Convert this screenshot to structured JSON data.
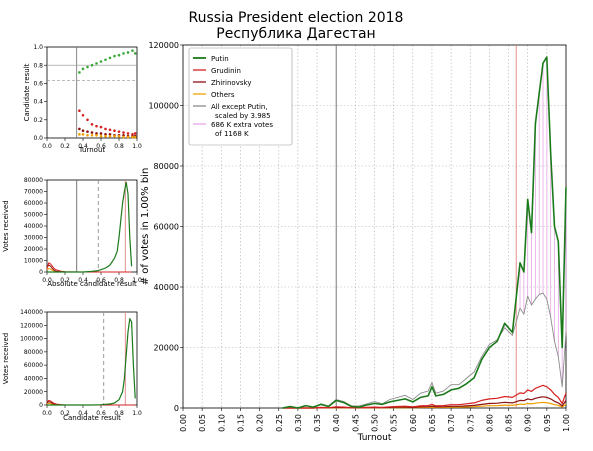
{
  "title": {
    "line1": "Russia President election 2018",
    "line2": "Республика Дагестан"
  },
  "colors": {
    "putin": "#1a7a1a",
    "grudinin": "#d62020",
    "zhirinovsky": "#8b1010",
    "others": "#f0a000",
    "all_except": "#8c8c8c",
    "extra": "#e6a6e6",
    "scatter_putin": "#3aa83a",
    "vline_putin": "#6a6a6a",
    "vline_red": "#e08080",
    "vline_dash": "#909090"
  },
  "chart_data": [
    {
      "id": "main",
      "type": "line",
      "ylabel": "# of votes in 1.00% bin",
      "xlabel": "Turnout",
      "xlim": [
        0.0,
        1.0
      ],
      "ylim": [
        0,
        120000
      ],
      "xticks": [
        "0.00",
        "0.05",
        "0.10",
        "0.15",
        "0.20",
        "0.25",
        "0.30",
        "0.35",
        "0.40",
        "0.45",
        "0.50",
        "0.55",
        "0.60",
        "0.65",
        "0.70",
        "0.75",
        "0.80",
        "0.85",
        "0.90",
        "0.95",
        "1.00"
      ],
      "yticks": [
        "0",
        "20000",
        "40000",
        "60000",
        "80000",
        "100000",
        "120000"
      ],
      "vlines": [
        {
          "x": 0.4,
          "style": "solid-gray"
        },
        {
          "x": 0.87,
          "style": "solid-red"
        }
      ],
      "x": [
        0.26,
        0.28,
        0.3,
        0.32,
        0.34,
        0.36,
        0.38,
        0.4,
        0.42,
        0.44,
        0.46,
        0.48,
        0.5,
        0.52,
        0.54,
        0.56,
        0.58,
        0.6,
        0.62,
        0.64,
        0.65,
        0.66,
        0.68,
        0.7,
        0.72,
        0.74,
        0.76,
        0.78,
        0.8,
        0.82,
        0.84,
        0.86,
        0.88,
        0.89,
        0.9,
        0.91,
        0.92,
        0.93,
        0.94,
        0.95,
        0.96,
        0.97,
        0.98,
        0.99,
        1.0
      ],
      "series": [
        {
          "name": "Putin",
          "key": "putin",
          "values": [
            0,
            500,
            0,
            800,
            300,
            1200,
            500,
            2500,
            1800,
            500,
            300,
            1000,
            1500,
            1200,
            2000,
            2500,
            3000,
            2000,
            3500,
            4000,
            7000,
            4000,
            4500,
            6000,
            6500,
            8000,
            10000,
            16000,
            20000,
            22000,
            28000,
            25000,
            48000,
            45000,
            69000,
            58000,
            94000,
            104000,
            114000,
            116000,
            84000,
            60000,
            55000,
            20000,
            73000
          ]
        },
        {
          "name": "Grudinin",
          "key": "grudinin",
          "values": [
            0,
            0,
            0,
            0,
            0,
            200,
            100,
            400,
            300,
            100,
            100,
            200,
            300,
            200,
            400,
            500,
            600,
            400,
            700,
            800,
            1200,
            700,
            800,
            1100,
            1100,
            1400,
            1700,
            2500,
            3000,
            3200,
            3800,
            3500,
            5000,
            4800,
            6000,
            5500,
            6500,
            7000,
            7500,
            7000,
            6000,
            4500,
            3500,
            1500,
            5000
          ]
        },
        {
          "name": "Zhirinovsky",
          "key": "zhirinovsky",
          "values": [
            0,
            0,
            0,
            0,
            0,
            100,
            50,
            200,
            150,
            50,
            50,
            100,
            150,
            100,
            200,
            250,
            300,
            200,
            350,
            400,
            600,
            350,
            400,
            550,
            550,
            700,
            850,
            1200,
            1500,
            1600,
            1900,
            1700,
            2500,
            2400,
            3000,
            2700,
            3200,
            3500,
            3700,
            3500,
            3000,
            2200,
            1700,
            700,
            2500
          ]
        },
        {
          "name": "Others",
          "key": "others",
          "values": [
            0,
            0,
            0,
            0,
            0,
            50,
            20,
            100,
            80,
            20,
            20,
            50,
            70,
            50,
            100,
            120,
            150,
            100,
            170,
            200,
            300,
            170,
            200,
            280,
            280,
            350,
            420,
            600,
            750,
            800,
            950,
            850,
            1250,
            1200,
            1500,
            1350,
            1600,
            1750,
            1850,
            1750,
            1500,
            1100,
            850,
            350,
            1250
          ]
        },
        {
          "name": "All except Putin,\nscaled by 3.985",
          "key": "all_except",
          "values": [
            0,
            0,
            0,
            0,
            0,
            1400,
            700,
            2800,
            2100,
            700,
            700,
            1400,
            2100,
            1400,
            2800,
            3500,
            4200,
            2800,
            4900,
            5600,
            8400,
            4900,
            5600,
            7700,
            7700,
            9800,
            11900,
            17000,
            21000,
            22500,
            26500,
            24000,
            33000,
            31000,
            37000,
            34000,
            36000,
            37500,
            38000,
            36000,
            30000,
            22000,
            17000,
            7000,
            25000
          ]
        },
        {
          "name": "686 K extra votes\nof 1168 K",
          "key": "extra",
          "style": "hatch-between"
        }
      ]
    },
    {
      "id": "small1",
      "type": "scatter",
      "xlabel": "Turnout",
      "ylabel": "Candidate result",
      "xlim": [
        0.0,
        1.0
      ],
      "ylim": [
        0.0,
        1.0
      ],
      "xticks": [
        "0.0",
        "0.2",
        "0.4",
        "0.6",
        "0.8",
        "1.0"
      ],
      "yticks": [
        "0.0",
        "0.2",
        "0.4",
        "0.6",
        "0.8",
        "1.0"
      ],
      "series": [
        {
          "name": "Putin",
          "key": "putin",
          "x": [
            0.36,
            0.4,
            0.45,
            0.5,
            0.55,
            0.6,
            0.65,
            0.7,
            0.75,
            0.8,
            0.85,
            0.9,
            0.95,
            0.98
          ],
          "y": [
            0.72,
            0.76,
            0.78,
            0.8,
            0.82,
            0.84,
            0.86,
            0.88,
            0.9,
            0.91,
            0.93,
            0.94,
            0.96,
            0.93
          ]
        },
        {
          "name": "Grudinin",
          "key": "grudinin",
          "x": [
            0.36,
            0.4,
            0.45,
            0.5,
            0.55,
            0.6,
            0.65,
            0.7,
            0.75,
            0.8,
            0.85,
            0.9,
            0.95,
            0.98
          ],
          "y": [
            0.3,
            0.25,
            0.2,
            0.15,
            0.13,
            0.12,
            0.1,
            0.09,
            0.08,
            0.07,
            0.06,
            0.05,
            0.04,
            0.05
          ]
        },
        {
          "name": "Zhirinovsky",
          "key": "zhirinovsky",
          "x": [
            0.36,
            0.4,
            0.45,
            0.5,
            0.55,
            0.6,
            0.65,
            0.7,
            0.75,
            0.8,
            0.85,
            0.9,
            0.95,
            0.98
          ],
          "y": [
            0.1,
            0.08,
            0.07,
            0.06,
            0.05,
            0.05,
            0.04,
            0.04,
            0.03,
            0.03,
            0.03,
            0.02,
            0.02,
            0.02
          ]
        },
        {
          "name": "Others",
          "key": "others",
          "x": [
            0.36,
            0.4,
            0.45,
            0.5,
            0.55,
            0.6,
            0.65,
            0.7,
            0.75,
            0.8,
            0.85,
            0.9,
            0.95,
            0.98
          ],
          "y": [
            0.04,
            0.04,
            0.03,
            0.03,
            0.03,
            0.02,
            0.02,
            0.02,
            0.02,
            0.02,
            0.01,
            0.01,
            0.01,
            0.01
          ]
        }
      ]
    },
    {
      "id": "small2",
      "type": "line",
      "xlabel": "Absolute candidate result",
      "ylabel": "Votes received",
      "xlim": [
        0.0,
        1.0
      ],
      "ylim": [
        0,
        80000
      ],
      "xticks": [
        "0.0",
        "0.2",
        "0.4",
        "0.6",
        "0.8",
        "1.0"
      ],
      "yticks": [
        "0",
        "10000",
        "20000",
        "30000",
        "40000",
        "50000",
        "60000",
        "70000",
        "80000"
      ],
      "vlines": [
        {
          "x": 0.33,
          "style": "solid-gray"
        },
        {
          "x": 0.57,
          "style": "dash"
        },
        {
          "x": 0.87,
          "style": "solid-red"
        }
      ],
      "x": [
        0.0,
        0.02,
        0.04,
        0.06,
        0.08,
        0.1,
        0.15,
        0.2,
        0.3,
        0.4,
        0.5,
        0.55,
        0.6,
        0.65,
        0.7,
        0.75,
        0.78,
        0.8,
        0.82,
        0.84,
        0.86,
        0.88,
        0.9,
        0.92,
        0.94
      ],
      "series": [
        {
          "name": "Putin",
          "key": "putin",
          "values": [
            0,
            0,
            0,
            0,
            0,
            0,
            0,
            0,
            0,
            0,
            500,
            1000,
            2000,
            3500,
            6000,
            12000,
            18000,
            30000,
            45000,
            60000,
            70000,
            78000,
            68000,
            30000,
            5000
          ]
        },
        {
          "name": "Grudinin",
          "key": "grudinin",
          "values": [
            3000,
            8000,
            7000,
            5000,
            3000,
            2000,
            800,
            300,
            100,
            0,
            0,
            0,
            0,
            0,
            0,
            0,
            0,
            0,
            0,
            0,
            0,
            0,
            0,
            0,
            0
          ]
        },
        {
          "name": "Zhirinovsky",
          "key": "zhirinovsky",
          "values": [
            4000,
            6000,
            5000,
            3000,
            1500,
            800,
            300,
            100,
            0,
            0,
            0,
            0,
            0,
            0,
            0,
            0,
            0,
            0,
            0,
            0,
            0,
            0,
            0,
            0,
            0
          ]
        },
        {
          "name": "Others",
          "key": "others",
          "values": [
            2000,
            3000,
            2500,
            1500,
            800,
            400,
            100,
            0,
            0,
            0,
            0,
            0,
            0,
            0,
            0,
            0,
            0,
            0,
            0,
            0,
            0,
            0,
            0,
            0,
            0
          ]
        }
      ]
    },
    {
      "id": "small3",
      "type": "line",
      "xlabel": "Candidate result",
      "ylabel": "Votes received",
      "xlim": [
        0.0,
        1.0
      ],
      "ylim": [
        0,
        140000
      ],
      "xticks": [
        "0.0",
        "0.2",
        "0.4",
        "0.6",
        "0.8",
        "1.0"
      ],
      "yticks": [
        "0",
        "20000",
        "40000",
        "60000",
        "80000",
        "100000",
        "120000",
        "140000"
      ],
      "vlines": [
        {
          "x": 0.63,
          "style": "dash"
        },
        {
          "x": 0.87,
          "style": "solid-red"
        }
      ],
      "x": [
        0.0,
        0.02,
        0.04,
        0.06,
        0.08,
        0.1,
        0.15,
        0.2,
        0.3,
        0.4,
        0.5,
        0.6,
        0.7,
        0.75,
        0.8,
        0.84,
        0.86,
        0.88,
        0.9,
        0.92,
        0.94,
        0.96,
        0.98
      ],
      "series": [
        {
          "name": "Putin",
          "key": "putin",
          "values": [
            0,
            0,
            0,
            0,
            0,
            0,
            0,
            0,
            0,
            0,
            0,
            500,
            1500,
            3000,
            8000,
            20000,
            40000,
            75000,
            110000,
            130000,
            125000,
            60000,
            10000
          ]
        },
        {
          "name": "Grudinin",
          "key": "grudinin",
          "values": [
            4000,
            7000,
            6000,
            4000,
            2500,
            1500,
            600,
            200,
            0,
            0,
            0,
            0,
            0,
            0,
            0,
            0,
            0,
            0,
            0,
            0,
            0,
            0,
            0
          ]
        },
        {
          "name": "Zhirinovsky",
          "key": "zhirinovsky",
          "values": [
            3000,
            5000,
            4000,
            2500,
            1500,
            700,
            200,
            50,
            0,
            0,
            0,
            0,
            0,
            0,
            0,
            0,
            0,
            0,
            0,
            0,
            0,
            0,
            0
          ]
        },
        {
          "name": "Others",
          "key": "others",
          "values": [
            1500,
            2500,
            2000,
            1200,
            600,
            300,
            100,
            0,
            0,
            0,
            0,
            0,
            0,
            0,
            0,
            0,
            0,
            0,
            0,
            0,
            0,
            0,
            0
          ]
        }
      ]
    }
  ]
}
